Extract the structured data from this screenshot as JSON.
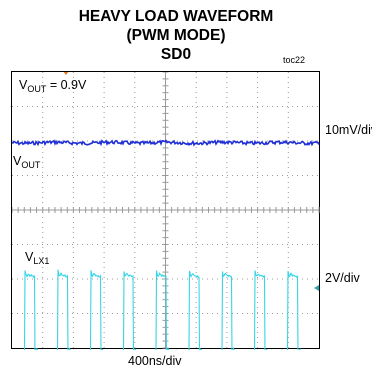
{
  "chart_data": {
    "type": "line",
    "title": "HEAVY LOAD WAVEFORM",
    "subtitle": "(PWM MODE)",
    "subtitle2": "SD0",
    "tag": "toc22",
    "x_label": "400ns/div",
    "grid": true,
    "divisions": {
      "x": 10,
      "y": 8
    },
    "series": [
      {
        "name": "VOUT",
        "sub": "OUT",
        "scale_label": "10mV/div",
        "color": "#1f2fd6",
        "annotation_prefix": "V",
        "annotation_sub": "OUT",
        "annotation_value": "= 0.9V",
        "shape": "flat with noise",
        "level_div": 1.95
      },
      {
        "name": "VLX1",
        "sub": "LX1",
        "scale_label": "2V/div",
        "color": "#37d6e6",
        "shape": "square wave",
        "period_div": 1.07,
        "high_level_div": -1.85,
        "low_level_div": -4.1
      }
    ]
  },
  "colors": {
    "grid": "#9a9a9a",
    "marker": "#e87522",
    "ref_marker": "#2aa8a8"
  }
}
